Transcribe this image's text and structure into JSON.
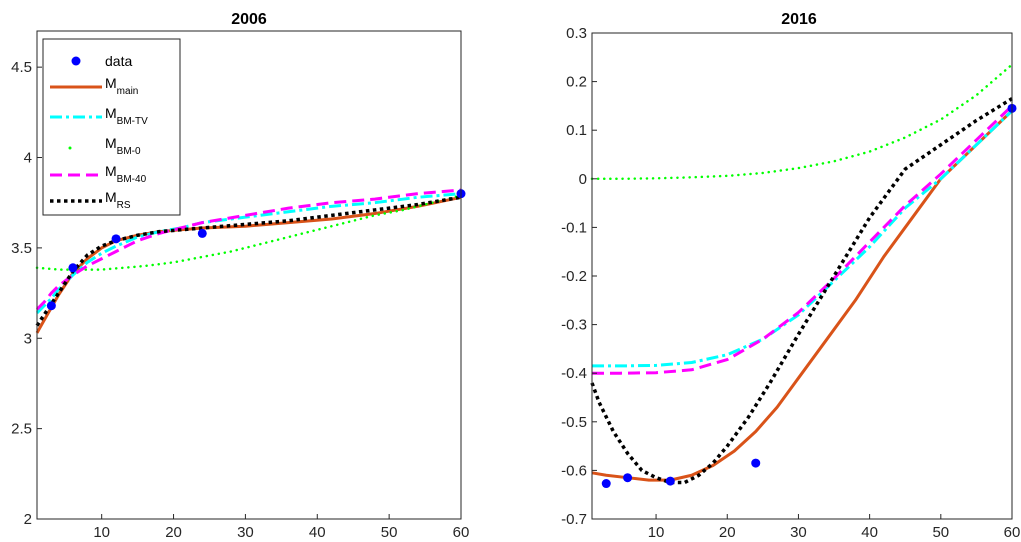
{
  "chart_data": [
    {
      "type": "line",
      "title": "2006",
      "xlim": [
        1,
        60
      ],
      "ylim": [
        2,
        4.7
      ],
      "xticks": [
        "10",
        "20",
        "30",
        "40",
        "50",
        "60"
      ],
      "xtick_values": [
        10,
        20,
        30,
        40,
        50,
        60
      ],
      "yticks": [
        "2",
        "2.5",
        "3",
        "3.5",
        "4",
        "4.5"
      ],
      "ytick_values": [
        2,
        2.5,
        3,
        3.5,
        4,
        4.5
      ],
      "legend": {
        "location": "top-left",
        "entries": [
          {
            "series": "data",
            "main": "data",
            "sub": ""
          },
          {
            "series": "M_main",
            "main": "M",
            "sub": "main"
          },
          {
            "series": "M_BM-TV",
            "main": "M",
            "sub": "BM-TV"
          },
          {
            "series": "M_BM-0",
            "main": "M",
            "sub": "BM-0"
          },
          {
            "series": "M_BM-40",
            "main": "M",
            "sub": "BM-40"
          },
          {
            "series": "M_RS",
            "main": "M",
            "sub": "RS"
          }
        ]
      },
      "series": [
        {
          "name": "data",
          "style": "markers",
          "color": "#0000ff",
          "x": [
            3,
            6,
            12,
            24,
            60
          ],
          "y": [
            3.18,
            3.39,
            3.55,
            3.58,
            3.8
          ]
        },
        {
          "name": "M_main",
          "style": "solid",
          "color": "#d95319",
          "x": [
            1,
            2,
            3,
            4,
            5,
            6,
            8,
            10,
            12,
            15,
            18,
            21,
            24,
            30,
            36,
            42,
            48,
            54,
            60
          ],
          "y": [
            3.03,
            3.1,
            3.17,
            3.24,
            3.3,
            3.36,
            3.44,
            3.5,
            3.54,
            3.57,
            3.59,
            3.6,
            3.61,
            3.62,
            3.64,
            3.66,
            3.69,
            3.73,
            3.78
          ]
        },
        {
          "name": "M_BM-TV",
          "style": "dashdot",
          "color": "#00ffff",
          "x": [
            1,
            2,
            3,
            4,
            5,
            6,
            8,
            10,
            12,
            15,
            18,
            21,
            24,
            30,
            36,
            42,
            48,
            54,
            60
          ],
          "y": [
            3.14,
            3.18,
            3.22,
            3.27,
            3.31,
            3.35,
            3.42,
            3.47,
            3.51,
            3.56,
            3.59,
            3.61,
            3.64,
            3.67,
            3.7,
            3.73,
            3.75,
            3.78,
            3.8
          ]
        },
        {
          "name": "M_BM-0",
          "style": "dotted",
          "color": "#00ff00",
          "x": [
            1,
            4,
            7,
            10,
            13,
            16,
            20,
            24,
            28,
            32,
            36,
            40,
            44,
            48,
            52,
            56,
            60
          ],
          "y": [
            3.39,
            3.38,
            3.38,
            3.38,
            3.39,
            3.4,
            3.42,
            3.45,
            3.48,
            3.52,
            3.56,
            3.6,
            3.64,
            3.68,
            3.71,
            3.75,
            3.79
          ]
        },
        {
          "name": "M_BM-40",
          "style": "dashed",
          "color": "#ff00ff",
          "x": [
            1,
            2,
            3,
            4,
            5,
            6,
            8,
            10,
            12,
            15,
            18,
            21,
            24,
            30,
            36,
            42,
            48,
            54,
            60
          ],
          "y": [
            3.16,
            3.2,
            3.25,
            3.29,
            3.32,
            3.35,
            3.4,
            3.44,
            3.48,
            3.54,
            3.58,
            3.61,
            3.64,
            3.68,
            3.72,
            3.75,
            3.77,
            3.8,
            3.82
          ]
        },
        {
          "name": "M_RS",
          "style": "dotted-thick",
          "color": "#000000",
          "x": [
            1,
            2,
            3,
            4,
            5,
            6,
            8,
            10,
            12,
            15,
            18,
            21,
            24,
            30,
            36,
            42,
            48,
            54,
            60
          ],
          "y": [
            3.07,
            3.13,
            3.19,
            3.25,
            3.31,
            3.37,
            3.46,
            3.51,
            3.54,
            3.57,
            3.59,
            3.6,
            3.61,
            3.63,
            3.65,
            3.68,
            3.71,
            3.74,
            3.78
          ]
        }
      ]
    },
    {
      "type": "line",
      "title": "2016",
      "xlim": [
        1,
        60
      ],
      "ylim": [
        -0.7,
        0.3
      ],
      "xticks": [
        "10",
        "20",
        "30",
        "40",
        "50",
        "60"
      ],
      "xtick_values": [
        10,
        20,
        30,
        40,
        50,
        60
      ],
      "yticks": [
        "-0.7",
        "-0.6",
        "-0.5",
        "-0.4",
        "-0.3",
        "-0.2",
        "-0.1",
        "0",
        "0.1",
        "0.2",
        "0.3"
      ],
      "ytick_values": [
        -0.7,
        -0.6,
        -0.5,
        -0.4,
        -0.3,
        -0.2,
        -0.1,
        0,
        0.1,
        0.2,
        0.3
      ],
      "series": [
        {
          "name": "data",
          "style": "markers",
          "color": "#0000ff",
          "x": [
            3,
            6,
            12,
            24,
            60
          ],
          "y": [
            -0.627,
            -0.615,
            -0.622,
            -0.585,
            0.145
          ]
        },
        {
          "name": "M_main",
          "style": "solid",
          "color": "#d95319",
          "x": [
            1,
            3,
            6,
            9,
            12,
            15,
            18,
            21,
            24,
            27,
            30,
            34,
            38,
            42,
            46,
            50,
            55,
            60
          ],
          "y": [
            -0.605,
            -0.61,
            -0.615,
            -0.62,
            -0.62,
            -0.61,
            -0.59,
            -0.56,
            -0.52,
            -0.47,
            -0.41,
            -0.33,
            -0.25,
            -0.16,
            -0.08,
            0.0,
            0.07,
            0.14
          ]
        },
        {
          "name": "M_BM-TV",
          "style": "dashdot",
          "color": "#00ffff",
          "x": [
            1,
            5,
            10,
            15,
            20,
            25,
            30,
            35,
            40,
            45,
            50,
            55,
            60
          ],
          "y": [
            -0.385,
            -0.385,
            -0.384,
            -0.378,
            -0.362,
            -0.33,
            -0.28,
            -0.21,
            -0.14,
            -0.06,
            0.0,
            0.07,
            0.14
          ]
        },
        {
          "name": "M_BM-0",
          "style": "dotted",
          "color": "#00ff00",
          "x": [
            1,
            5,
            10,
            15,
            20,
            25,
            30,
            35,
            40,
            45,
            50,
            55,
            60
          ],
          "y": [
            0.0,
            0.0,
            0.001,
            0.003,
            0.006,
            0.012,
            0.022,
            0.036,
            0.056,
            0.085,
            0.122,
            0.172,
            0.235
          ]
        },
        {
          "name": "M_BM-40",
          "style": "dashed",
          "color": "#ff00ff",
          "x": [
            1,
            5,
            10,
            15,
            20,
            25,
            30,
            35,
            40,
            45,
            50,
            55,
            60
          ],
          "y": [
            -0.4,
            -0.4,
            -0.399,
            -0.393,
            -0.372,
            -0.33,
            -0.275,
            -0.205,
            -0.13,
            -0.055,
            0.01,
            0.08,
            0.15
          ]
        },
        {
          "name": "M_RS",
          "style": "dotted-thick",
          "color": "#000000",
          "x": [
            1,
            2,
            4,
            6,
            8,
            10,
            12,
            14,
            16,
            18,
            20,
            23,
            26,
            30,
            35,
            40,
            45,
            50,
            55,
            60
          ],
          "y": [
            -0.42,
            -0.46,
            -0.52,
            -0.565,
            -0.6,
            -0.615,
            -0.625,
            -0.625,
            -0.61,
            -0.585,
            -0.55,
            -0.49,
            -0.42,
            -0.32,
            -0.2,
            -0.08,
            0.02,
            0.07,
            0.12,
            0.165
          ]
        }
      ]
    }
  ]
}
